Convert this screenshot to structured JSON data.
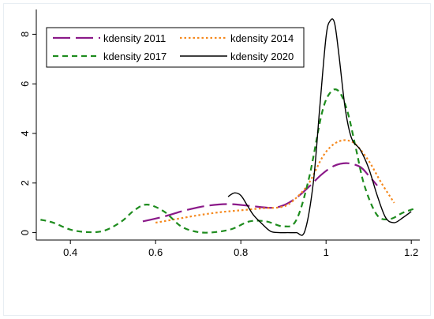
{
  "chart_data": {
    "type": "line",
    "title": "",
    "xlabel": "",
    "ylabel": "",
    "xlim": [
      0.32,
      1.22
    ],
    "ylim": [
      -0.3,
      9.0
    ],
    "xticks": [
      0.4,
      0.6,
      0.8,
      1,
      1.2
    ],
    "xtick_labels": [
      "0.4",
      "0.6",
      "0.8",
      "1",
      "1.2"
    ],
    "yticks": [
      0,
      2,
      4,
      6,
      8
    ],
    "ytick_labels": [
      "0",
      "2",
      "4",
      "6",
      "8"
    ],
    "grid": false,
    "legend_position": "top",
    "series": [
      {
        "name": "kdensity 2011",
        "color": "#8b1a89",
        "style": "longdash",
        "x": [
          0.57,
          0.62,
          0.67,
          0.72,
          0.77,
          0.82,
          0.87,
          0.9,
          0.93,
          0.96,
          0.99,
          1.02,
          1.05,
          1.08,
          1.1,
          1.12
        ],
        "y": [
          0.45,
          0.65,
          0.9,
          1.08,
          1.15,
          1.08,
          1.0,
          1.1,
          1.4,
          1.85,
          2.35,
          2.7,
          2.8,
          2.65,
          2.3,
          1.9
        ]
      },
      {
        "name": "kdensity 2014",
        "color": "#f5891e",
        "style": "dot",
        "x": [
          0.6,
          0.65,
          0.7,
          0.75,
          0.8,
          0.85,
          0.9,
          0.93,
          0.96,
          0.99,
          1.01,
          1.03,
          1.05,
          1.07,
          1.1,
          1.13,
          1.16
        ],
        "y": [
          0.4,
          0.55,
          0.7,
          0.82,
          0.9,
          0.98,
          1.05,
          1.4,
          2.0,
          3.0,
          3.45,
          3.68,
          3.72,
          3.55,
          2.9,
          2.0,
          1.2
        ]
      },
      {
        "name": "kdensity 2017",
        "color": "#1e8c1e",
        "style": "dash",
        "x": [
          0.33,
          0.36,
          0.4,
          0.44,
          0.48,
          0.52,
          0.55,
          0.58,
          0.62,
          0.66,
          0.7,
          0.74,
          0.78,
          0.82,
          0.86,
          0.9,
          0.93,
          0.96,
          0.99,
          1.01,
          1.03,
          1.05,
          1.07,
          1.09,
          1.12,
          1.15,
          1.18,
          1.21
        ],
        "y": [
          0.52,
          0.4,
          0.12,
          0.02,
          0.08,
          0.45,
          0.9,
          1.13,
          0.85,
          0.25,
          0.02,
          0.02,
          0.15,
          0.45,
          0.45,
          0.25,
          0.5,
          2.2,
          4.8,
          5.65,
          5.7,
          4.9,
          3.4,
          1.9,
          0.7,
          0.55,
          0.8,
          0.98
        ]
      },
      {
        "name": "kdensity 2020",
        "color": "#000000",
        "style": "solid",
        "x": [
          0.77,
          0.785,
          0.8,
          0.815,
          0.83,
          0.85,
          0.87,
          0.89,
          0.91,
          0.93,
          0.95,
          0.97,
          0.985,
          1.0,
          1.01,
          1.02,
          1.03,
          1.045,
          1.06,
          1.08,
          1.1,
          1.12,
          1.14,
          1.16,
          1.18,
          1.2
        ],
        "y": [
          1.45,
          1.6,
          1.5,
          1.1,
          0.7,
          0.35,
          0.05,
          0.0,
          0.0,
          0.0,
          0.05,
          2.0,
          5.0,
          7.9,
          8.55,
          8.45,
          7.2,
          5.0,
          3.8,
          3.35,
          2.6,
          1.5,
          0.6,
          0.4,
          0.6,
          0.85
        ]
      }
    ]
  }
}
